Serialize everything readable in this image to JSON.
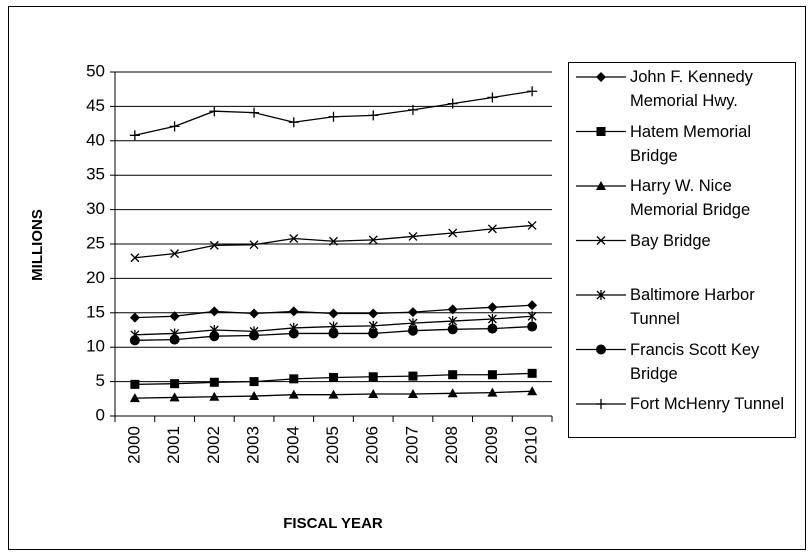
{
  "chart_data": {
    "type": "line",
    "ylabel": "MILLIONS",
    "xlabel": "FISCAL YEAR",
    "categories": [
      "2000",
      "2001",
      "2002",
      "2003",
      "2004",
      "2005",
      "2006",
      "2007",
      "2008",
      "2009",
      "2010"
    ],
    "ylim": [
      0,
      50
    ],
    "yticks": [
      0,
      5,
      10,
      15,
      20,
      25,
      30,
      35,
      40,
      45,
      50
    ],
    "grid": true,
    "legend": "right",
    "series": [
      {
        "name": "John F. Kennedy Memorial Hwy.",
        "color": "#000000",
        "marker": "diamond",
        "values": [
          14.3,
          14.5,
          15.2,
          14.9,
          15.2,
          14.9,
          14.9,
          15.1,
          15.5,
          15.8,
          16.1
        ]
      },
      {
        "name": "Hatem Memorial Bridge",
        "color": "#000000",
        "marker": "square",
        "values": [
          4.6,
          4.7,
          4.9,
          5.0,
          5.4,
          5.6,
          5.7,
          5.8,
          6.0,
          6.0,
          6.2
        ]
      },
      {
        "name": "Harry W. Nice Memorial Bridge",
        "color": "#000000",
        "marker": "triangle",
        "values": [
          2.6,
          2.7,
          2.8,
          2.9,
          3.1,
          3.1,
          3.2,
          3.2,
          3.3,
          3.4,
          3.6
        ]
      },
      {
        "name": "Bay Bridge",
        "color": "#000000",
        "marker": "x",
        "values": [
          23.0,
          23.6,
          24.8,
          24.9,
          25.8,
          25.4,
          25.6,
          26.1,
          26.6,
          27.2,
          27.7
        ]
      },
      {
        "name": "Baltimore Harbor Tunnel",
        "color": "#000000",
        "marker": "asterisk",
        "values": [
          11.8,
          12.0,
          12.5,
          12.3,
          12.8,
          13.0,
          13.1,
          13.5,
          13.8,
          14.1,
          14.5
        ]
      },
      {
        "name": "Francis Scott Key Bridge",
        "color": "#000000",
        "marker": "circle",
        "values": [
          11.0,
          11.1,
          11.6,
          11.7,
          12.0,
          12.0,
          12.0,
          12.4,
          12.6,
          12.7,
          13.0
        ]
      },
      {
        "name": "Fort McHenry Tunnel",
        "color": "#000000",
        "marker": "plus",
        "values": [
          40.8,
          42.1,
          44.3,
          44.1,
          42.7,
          43.5,
          43.7,
          44.5,
          45.4,
          46.3,
          47.2
        ]
      }
    ]
  }
}
